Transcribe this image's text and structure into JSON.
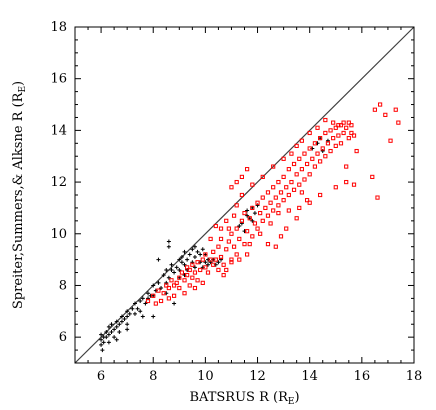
{
  "chart_data": {
    "type": "scatter",
    "title": "",
    "xlabel": "BATSRUS R (R",
    "xlabel_sub": "E",
    "xlabel_close": ")",
    "ylabel": "Spreiter,Summers,& Alksne R (R",
    "ylabel_sub": "E",
    "ylabel_close": ")",
    "xlim": [
      5,
      18
    ],
    "ylim": [
      5,
      18
    ],
    "xticks": [
      6,
      8,
      10,
      12,
      14,
      16,
      18
    ],
    "yticks": [
      6,
      8,
      10,
      12,
      14,
      16,
      18
    ],
    "diagonal": {
      "from": [
        5,
        5
      ],
      "to": [
        18,
        18
      ],
      "color": "#404040"
    },
    "grid": false,
    "legend": "none",
    "series": [
      {
        "marker": "plus",
        "color": "#000000",
        "points": [
          [
            6.0,
            5.9
          ],
          [
            6.0,
            5.7
          ],
          [
            6.0,
            6.1
          ],
          [
            6.05,
            5.5
          ],
          [
            6.1,
            6.0
          ],
          [
            6.1,
            5.8
          ],
          [
            6.2,
            6.0
          ],
          [
            6.2,
            6.2
          ],
          [
            6.3,
            6.1
          ],
          [
            6.3,
            6.4
          ],
          [
            6.4,
            6.2
          ],
          [
            6.4,
            6.5
          ],
          [
            6.5,
            6.3
          ],
          [
            6.5,
            6.0
          ],
          [
            6.6,
            6.6
          ],
          [
            6.6,
            6.4
          ],
          [
            6.7,
            6.5
          ],
          [
            6.7,
            6.2
          ],
          [
            6.8,
            6.8
          ],
          [
            6.8,
            6.6
          ],
          [
            6.9,
            6.7
          ],
          [
            7.0,
            7.0
          ],
          [
            7.0,
            6.5
          ],
          [
            7.0,
            6.8
          ],
          [
            7.1,
            6.9
          ],
          [
            7.2,
            7.1
          ],
          [
            7.3,
            6.9
          ],
          [
            7.3,
            7.3
          ],
          [
            7.4,
            7.1
          ],
          [
            7.5,
            7.4
          ],
          [
            7.5,
            7.0
          ],
          [
            7.6,
            7.5
          ],
          [
            7.7,
            7.3
          ],
          [
            7.8,
            7.7
          ],
          [
            7.8,
            7.5
          ],
          [
            7.9,
            7.6
          ],
          [
            8.0,
            8.0
          ],
          [
            8.0,
            7.6
          ],
          [
            8.0,
            6.8
          ],
          [
            8.1,
            7.8
          ],
          [
            8.2,
            8.1
          ],
          [
            8.3,
            7.9
          ],
          [
            8.4,
            8.4
          ],
          [
            8.5,
            8.1
          ],
          [
            8.5,
            8.6
          ],
          [
            8.6,
            8.3
          ],
          [
            8.7,
            8.6
          ],
          [
            8.7,
            8.8
          ],
          [
            8.8,
            8.5
          ],
          [
            8.9,
            8.7
          ],
          [
            9.0,
            9.0
          ],
          [
            9.0,
            8.6
          ],
          [
            9.0,
            8.3
          ],
          [
            9.1,
            9.1
          ],
          [
            9.1,
            8.9
          ],
          [
            9.2,
            8.8
          ],
          [
            9.2,
            9.3
          ],
          [
            9.3,
            9.0
          ],
          [
            9.3,
            8.6
          ],
          [
            9.4,
            9.2
          ],
          [
            9.5,
            9.4
          ],
          [
            9.5,
            8.9
          ],
          [
            9.6,
            9.1
          ],
          [
            9.6,
            9.5
          ],
          [
            9.7,
            9.3
          ],
          [
            9.8,
            9.2
          ],
          [
            9.8,
            8.9
          ],
          [
            9.9,
            9.4
          ],
          [
            9.9,
            8.7
          ],
          [
            10.0,
            9.2
          ],
          [
            10.0,
            8.9
          ],
          [
            10.1,
            9.0
          ],
          [
            10.1,
            8.8
          ],
          [
            10.2,
            8.9
          ],
          [
            10.3,
            9.0
          ],
          [
            10.4,
            8.8
          ],
          [
            10.5,
            8.9
          ],
          [
            10.6,
            9.0
          ],
          [
            9.6,
            8.7
          ],
          [
            9.2,
            8.4
          ],
          [
            8.5,
            7.7
          ],
          [
            8.8,
            7.3
          ],
          [
            7.6,
            6.8
          ],
          [
            6.3,
            5.8
          ],
          [
            6.6,
            5.9
          ],
          [
            7.0,
            6.3
          ],
          [
            11.4,
            10.4
          ],
          [
            11.6,
            10.7
          ],
          [
            11.8,
            11.0
          ],
          [
            11.5,
            10.1
          ],
          [
            11.7,
            10.6
          ],
          [
            11.9,
            10.8
          ],
          [
            12.0,
            11.1
          ],
          [
            11.3,
            10.3
          ],
          [
            11.6,
            10.9
          ],
          [
            11.8,
            10.5
          ],
          [
            14.3,
            13.5
          ],
          [
            14.5,
            13.2
          ],
          [
            14.1,
            13.3
          ],
          [
            14.7,
            13.6
          ],
          [
            14.4,
            13.7
          ],
          [
            8.6,
            9.5
          ],
          [
            8.6,
            9.7
          ],
          [
            8.2,
            9.0
          ]
        ]
      },
      {
        "marker": "square",
        "color": "#ff0000",
        "points": [
          [
            7.8,
            7.4
          ],
          [
            8.0,
            7.6
          ],
          [
            8.2,
            7.8
          ],
          [
            8.4,
            7.7
          ],
          [
            8.5,
            8.0
          ],
          [
            8.6,
            7.9
          ],
          [
            8.7,
            8.2
          ],
          [
            8.8,
            8.0
          ],
          [
            8.9,
            8.1
          ],
          [
            9.0,
            8.3
          ],
          [
            9.0,
            7.9
          ],
          [
            9.1,
            8.5
          ],
          [
            9.2,
            8.2
          ],
          [
            9.3,
            8.4
          ],
          [
            9.3,
            8.7
          ],
          [
            9.4,
            8.6
          ],
          [
            9.5,
            8.3
          ],
          [
            9.5,
            8.8
          ],
          [
            9.6,
            8.5
          ],
          [
            9.7,
            8.9
          ],
          [
            9.7,
            8.2
          ],
          [
            9.8,
            8.6
          ],
          [
            9.9,
            9.0
          ],
          [
            10.0,
            8.7
          ],
          [
            10.0,
            9.2
          ],
          [
            10.1,
            8.5
          ],
          [
            10.2,
            9.0
          ],
          [
            10.3,
            8.8
          ],
          [
            10.3,
            9.3
          ],
          [
            10.4,
            9.0
          ],
          [
            10.5,
            8.6
          ],
          [
            10.5,
            9.5
          ],
          [
            10.6,
            9.1
          ],
          [
            10.7,
            8.8
          ],
          [
            10.8,
            9.4
          ],
          [
            10.9,
            9.7
          ],
          [
            11.0,
            9.0
          ],
          [
            11.0,
            10.0
          ],
          [
            11.1,
            9.5
          ],
          [
            11.2,
            10.2
          ],
          [
            11.2,
            9.2
          ],
          [
            11.3,
            9.8
          ],
          [
            11.4,
            10.5
          ],
          [
            11.5,
            9.6
          ],
          [
            11.5,
            10.8
          ],
          [
            11.6,
            10.1
          ],
          [
            11.7,
            10.6
          ],
          [
            11.8,
            9.9
          ],
          [
            11.8,
            11.0
          ],
          [
            11.9,
            10.4
          ],
          [
            12.0,
            11.2
          ],
          [
            12.0,
            10.2
          ],
          [
            12.1,
            10.8
          ],
          [
            12.2,
            11.4
          ],
          [
            12.2,
            10.5
          ],
          [
            12.3,
            11.0
          ],
          [
            12.4,
            11.6
          ],
          [
            12.4,
            10.7
          ],
          [
            12.5,
            11.2
          ],
          [
            12.6,
            11.8
          ],
          [
            12.6,
            10.9
          ],
          [
            12.7,
            11.4
          ],
          [
            12.8,
            12.0
          ],
          [
            12.8,
            11.1
          ],
          [
            12.9,
            11.6
          ],
          [
            13.0,
            12.2
          ],
          [
            13.0,
            11.3
          ],
          [
            13.1,
            11.8
          ],
          [
            13.2,
            12.5
          ],
          [
            13.2,
            11.5
          ],
          [
            13.3,
            12.0
          ],
          [
            13.4,
            12.7
          ],
          [
            13.4,
            11.7
          ],
          [
            13.5,
            12.3
          ],
          [
            13.6,
            12.9
          ],
          [
            13.6,
            11.9
          ],
          [
            13.7,
            12.5
          ],
          [
            13.8,
            13.1
          ],
          [
            13.8,
            12.1
          ],
          [
            13.9,
            12.7
          ],
          [
            14.0,
            13.3
          ],
          [
            14.0,
            12.3
          ],
          [
            14.1,
            12.9
          ],
          [
            14.2,
            13.5
          ],
          [
            14.2,
            12.6
          ],
          [
            14.3,
            13.1
          ],
          [
            14.4,
            13.7
          ],
          [
            14.4,
            12.8
          ],
          [
            14.5,
            13.3
          ],
          [
            14.6,
            13.9
          ],
          [
            14.6,
            13.0
          ],
          [
            14.7,
            13.5
          ],
          [
            14.8,
            14.0
          ],
          [
            14.8,
            13.2
          ],
          [
            14.9,
            13.7
          ],
          [
            15.0,
            14.1
          ],
          [
            15.0,
            13.4
          ],
          [
            15.1,
            13.8
          ],
          [
            15.2,
            14.2
          ],
          [
            15.2,
            13.5
          ],
          [
            15.3,
            13.9
          ],
          [
            15.4,
            14.1
          ],
          [
            15.5,
            13.7
          ],
          [
            15.5,
            14.3
          ],
          [
            15.6,
            13.9
          ],
          [
            15.6,
            14.2
          ],
          [
            15.7,
            13.8
          ],
          [
            15.3,
            14.3
          ],
          [
            15.1,
            14.2
          ],
          [
            14.9,
            14.3
          ],
          [
            14.6,
            14.4
          ],
          [
            14.3,
            14.1
          ],
          [
            14.0,
            13.9
          ],
          [
            13.7,
            13.6
          ],
          [
            13.5,
            13.4
          ],
          [
            13.3,
            13.1
          ],
          [
            13.0,
            12.9
          ],
          [
            12.6,
            12.6
          ],
          [
            12.2,
            12.2
          ],
          [
            11.8,
            11.9
          ],
          [
            11.4,
            11.5
          ],
          [
            11.2,
            12.0
          ],
          [
            11.0,
            11.8
          ],
          [
            11.6,
            12.5
          ],
          [
            11.4,
            12.2
          ],
          [
            11.2,
            11.1
          ],
          [
            10.8,
            10.5
          ],
          [
            10.6,
            10.2
          ],
          [
            10.4,
            10.3
          ],
          [
            10.2,
            9.8
          ],
          [
            10.6,
            9.8
          ],
          [
            10.9,
            10.2
          ],
          [
            11.1,
            10.7
          ],
          [
            12.8,
            10.8
          ],
          [
            13.2,
            10.9
          ],
          [
            13.6,
            11.0
          ],
          [
            14.0,
            11.2
          ],
          [
            14.4,
            11.5
          ],
          [
            15.0,
            11.8
          ],
          [
            15.4,
            12.0
          ],
          [
            15.7,
            11.9
          ],
          [
            16.4,
            12.2
          ],
          [
            16.6,
            11.4
          ],
          [
            17.1,
            13.6
          ],
          [
            17.4,
            14.3
          ],
          [
            17.3,
            14.8
          ],
          [
            16.9,
            14.6
          ],
          [
            16.7,
            15.0
          ],
          [
            16.5,
            14.8
          ],
          [
            15.8,
            13.2
          ],
          [
            15.4,
            12.6
          ],
          [
            13.7,
            11.6
          ],
          [
            13.9,
            11.3
          ],
          [
            12.5,
            10.4
          ],
          [
            12.1,
            10.0
          ],
          [
            11.7,
            9.6
          ],
          [
            11.3,
            9.0
          ],
          [
            11.0,
            8.9
          ],
          [
            10.8,
            8.6
          ],
          [
            10.7,
            8.4
          ],
          [
            11.6,
            9.2
          ],
          [
            12.4,
            9.6
          ],
          [
            13.1,
            10.2
          ],
          [
            12.9,
            9.9
          ],
          [
            12.7,
            9.5
          ],
          [
            13.5,
            10.6
          ],
          [
            9.9,
            8.1
          ],
          [
            9.6,
            7.9
          ],
          [
            9.2,
            7.7
          ],
          [
            8.8,
            7.6
          ],
          [
            8.6,
            7.5
          ],
          [
            8.3,
            7.4
          ],
          [
            8.1,
            7.3
          ],
          [
            9.4,
            8.0
          ]
        ]
      }
    ]
  }
}
